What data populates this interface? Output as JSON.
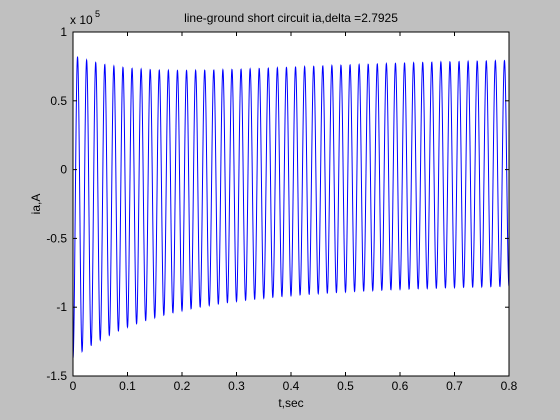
{
  "figure": {
    "background": "#c0c0c0",
    "axes_background": "#ffffff"
  },
  "chart_data": {
    "type": "line",
    "title": "line-ground short circuit ia,delta =2.7925",
    "xlabel": "t,sec",
    "ylabel": "ia,A",
    "y_multiplier_label": "x 10",
    "y_multiplier_exponent": "5",
    "xlim": [
      0,
      0.8
    ],
    "ylim": [
      -1.5,
      1
    ],
    "y_unit_scale": 100000,
    "xticks": [
      0,
      0.1,
      0.2,
      0.3,
      0.4,
      0.5,
      0.6,
      0.7,
      0.8
    ],
    "xtick_labels": [
      "0",
      "0.1",
      "0.2",
      "0.3",
      "0.4",
      "0.5",
      "0.6",
      "0.7",
      "0.8"
    ],
    "yticks": [
      -1.5,
      -1,
      -0.5,
      0,
      0.5,
      1
    ],
    "ytick_labels": [
      "-1.5",
      "-1",
      "-0.5",
      "0",
      "0.5",
      "1"
    ],
    "grid": false,
    "legend": "none",
    "series": [
      {
        "color": "#0000ff",
        "frequency_hz": 60,
        "phase_rad": -1.5708,
        "x_start": 0,
        "x_end": 0.8,
        "dc_offset": {
          "initial": -0.27,
          "decay_time_constant_s": 0.35
        },
        "ac_amplitude": {
          "initial": 1.1,
          "final": 0.82,
          "decay_time_constant_s": 0.12
        }
      }
    ]
  }
}
